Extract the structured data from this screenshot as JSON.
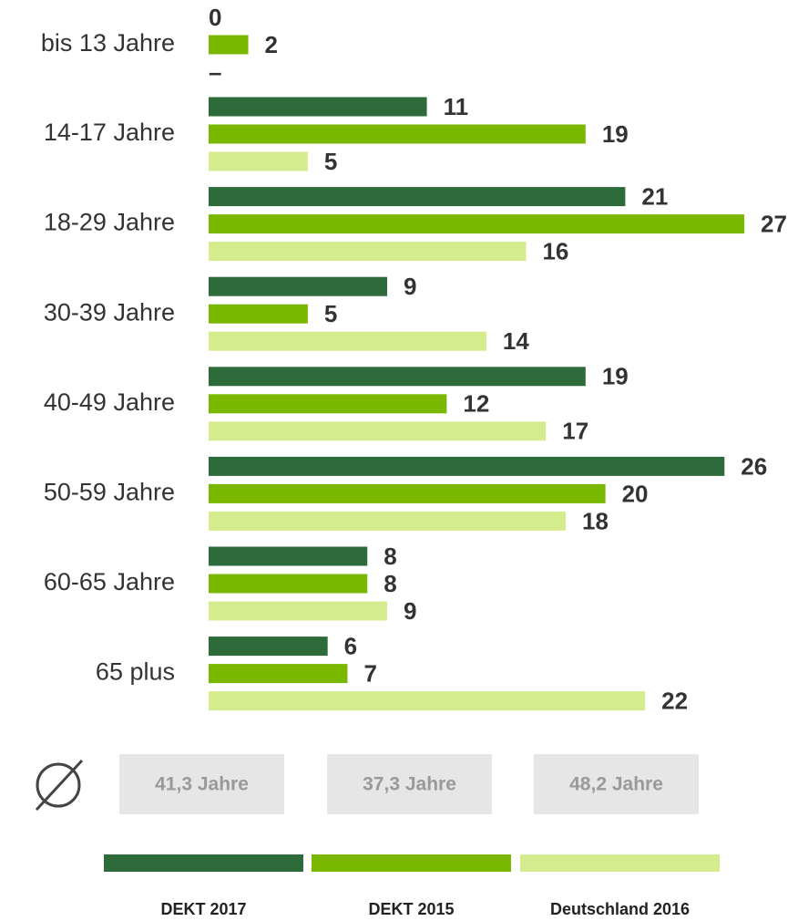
{
  "chart_data": {
    "type": "bar",
    "orientation": "horizontal",
    "categories": [
      "bis 13 Jahre",
      "14-17 Jahre",
      "18-29 Jahre",
      "30-39 Jahre",
      "40-49 Jahre",
      "50-59 Jahre",
      "60-65 Jahre",
      "65 plus"
    ],
    "series": [
      {
        "name": "DEKT 2017",
        "color": "#2e6b3a",
        "values": [
          0,
          11,
          21,
          9,
          19,
          26,
          8,
          6
        ]
      },
      {
        "name": "DEKT 2015",
        "color": "#7ab800",
        "values": [
          2,
          19,
          27,
          5,
          12,
          20,
          8,
          7
        ]
      },
      {
        "name": "Deutschland 2016",
        "color": "#d4ec8e",
        "values": [
          null,
          5,
          16,
          14,
          17,
          18,
          9,
          22
        ],
        "value_labels": [
          "–",
          "5",
          "16",
          "14",
          "17",
          "18",
          "9",
          "22"
        ]
      }
    ],
    "averages": [
      "41,3 Jahre",
      "37,3 Jahre",
      "48,2 Jahre"
    ],
    "legend": "bottom"
  }
}
